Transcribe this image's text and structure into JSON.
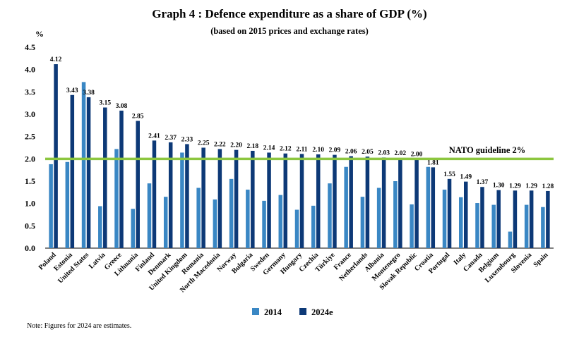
{
  "chart_data": {
    "type": "bar",
    "title": "Graph 4 : Defence expenditure as a share of GDP (%)",
    "subtitle": "(based on 2015 prices and exchange rates)",
    "ylabel": "%",
    "xlabel": "",
    "ylim": [
      0,
      4.5
    ],
    "yticks": [
      "0.0",
      "0.5",
      "1.0",
      "1.5",
      "2.0",
      "2.5",
      "3.0",
      "3.5",
      "4.0",
      "4.5"
    ],
    "grid": false,
    "categories": [
      "Poland",
      "Estonia",
      "United States",
      "Latvia",
      "Greece",
      "Lithuania",
      "Finland",
      "Denmark",
      "United Kingdom",
      "Romania",
      "North Macedonia",
      "Norway",
      "Bulgaria",
      "Sweden",
      "Germany",
      "Hungary",
      "Czechia",
      "Türkiye",
      "France",
      "Netherlands",
      "Albania",
      "Montenegro",
      "Slovak Republic",
      "Croatia",
      "Portugal",
      "Italy",
      "Canada",
      "Belgium",
      "Luxembourg",
      "Slovenia",
      "Spain"
    ],
    "series": [
      {
        "name": "2014",
        "color": "#3a87c4",
        "values": [
          1.88,
          1.93,
          3.72,
          0.94,
          2.22,
          0.88,
          1.45,
          1.15,
          2.14,
          1.35,
          1.09,
          1.55,
          1.31,
          1.06,
          1.19,
          0.86,
          0.95,
          1.45,
          1.82,
          1.15,
          1.35,
          1.5,
          0.98,
          1.82,
          1.31,
          1.14,
          1.01,
          0.97,
          0.37,
          0.97,
          0.92
        ],
        "labels": []
      },
      {
        "name": "2024e",
        "color": "#0d3977",
        "values": [
          4.12,
          3.43,
          3.38,
          3.15,
          3.08,
          2.85,
          2.41,
          2.37,
          2.33,
          2.25,
          2.22,
          2.2,
          2.18,
          2.14,
          2.12,
          2.11,
          2.1,
          2.09,
          2.06,
          2.05,
          2.03,
          2.02,
          2.0,
          1.81,
          1.55,
          1.49,
          1.37,
          1.3,
          1.29,
          1.29,
          1.28
        ],
        "labels": [
          "4.12",
          "3.43",
          "3.38",
          "3.15",
          "3.08",
          "2.85",
          "2.41",
          "2.37",
          "2.33",
          "2.25",
          "2.22",
          "2.20",
          "2.18",
          "2.14",
          "2.12",
          "2.11",
          "2.10",
          "2.09",
          "2.06",
          "2.05",
          "2.03",
          "2.02",
          "2.00",
          "1.81",
          "1.55",
          "1.49",
          "1.37",
          "1.30",
          "1.29",
          "1.29",
          "1.28"
        ]
      }
    ],
    "reference_line": {
      "value": 2.0,
      "label": "NATO guideline 2%",
      "color": "#8cc63f"
    },
    "legend": {
      "position": "bottom"
    },
    "note": "Note: Figures for 2024 are estimates."
  }
}
